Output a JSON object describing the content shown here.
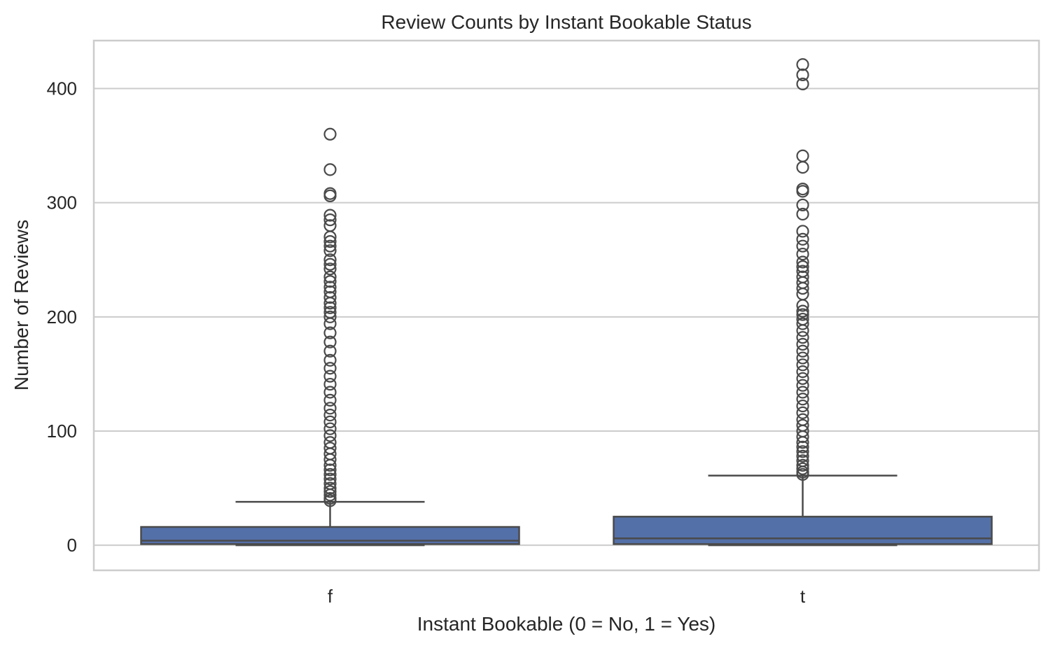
{
  "chart_data": {
    "type": "box",
    "title": "Review Counts by Instant Bookable Status",
    "xlabel": "Instant Bookable (0 = No, 1 = Yes)",
    "ylabel": "Number of Reviews",
    "ylim": [
      -22,
      442
    ],
    "yticks": [
      0,
      100,
      200,
      300,
      400
    ],
    "grid": true,
    "categories": [
      "f",
      "t"
    ],
    "color": "#5470a8",
    "boxes": [
      {
        "label": "f",
        "whisker_low": 0,
        "q1": 1,
        "median": 4,
        "q3": 16,
        "whisker_high": 38,
        "outliers": [
          39,
          41,
          44,
          47,
          50,
          54,
          58,
          62,
          66,
          70,
          75,
          80,
          85,
          90,
          96,
          102,
          108,
          114,
          120,
          127,
          134,
          141,
          148,
          155,
          162,
          170,
          178,
          186,
          194,
          200,
          204,
          208,
          212,
          217,
          222,
          226,
          231,
          235,
          242,
          246,
          250,
          258,
          262,
          266,
          270,
          280,
          285,
          289,
          306,
          308,
          329,
          360
        ]
      },
      {
        "label": "t",
        "whisker_low": 0,
        "q1": 1,
        "median": 6,
        "q3": 25,
        "whisker_high": 61,
        "outliers": [
          62,
          64,
          67,
          70,
          74,
          78,
          82,
          86,
          90,
          95,
          100,
          105,
          110,
          116,
          122,
          128,
          134,
          140,
          146,
          152,
          158,
          164,
          170,
          176,
          182,
          188,
          194,
          198,
          202,
          205,
          210,
          220,
          225,
          230,
          235,
          240,
          244,
          248,
          255,
          262,
          268,
          275,
          290,
          298,
          310,
          312,
          331,
          341,
          404,
          412,
          421
        ]
      }
    ]
  }
}
